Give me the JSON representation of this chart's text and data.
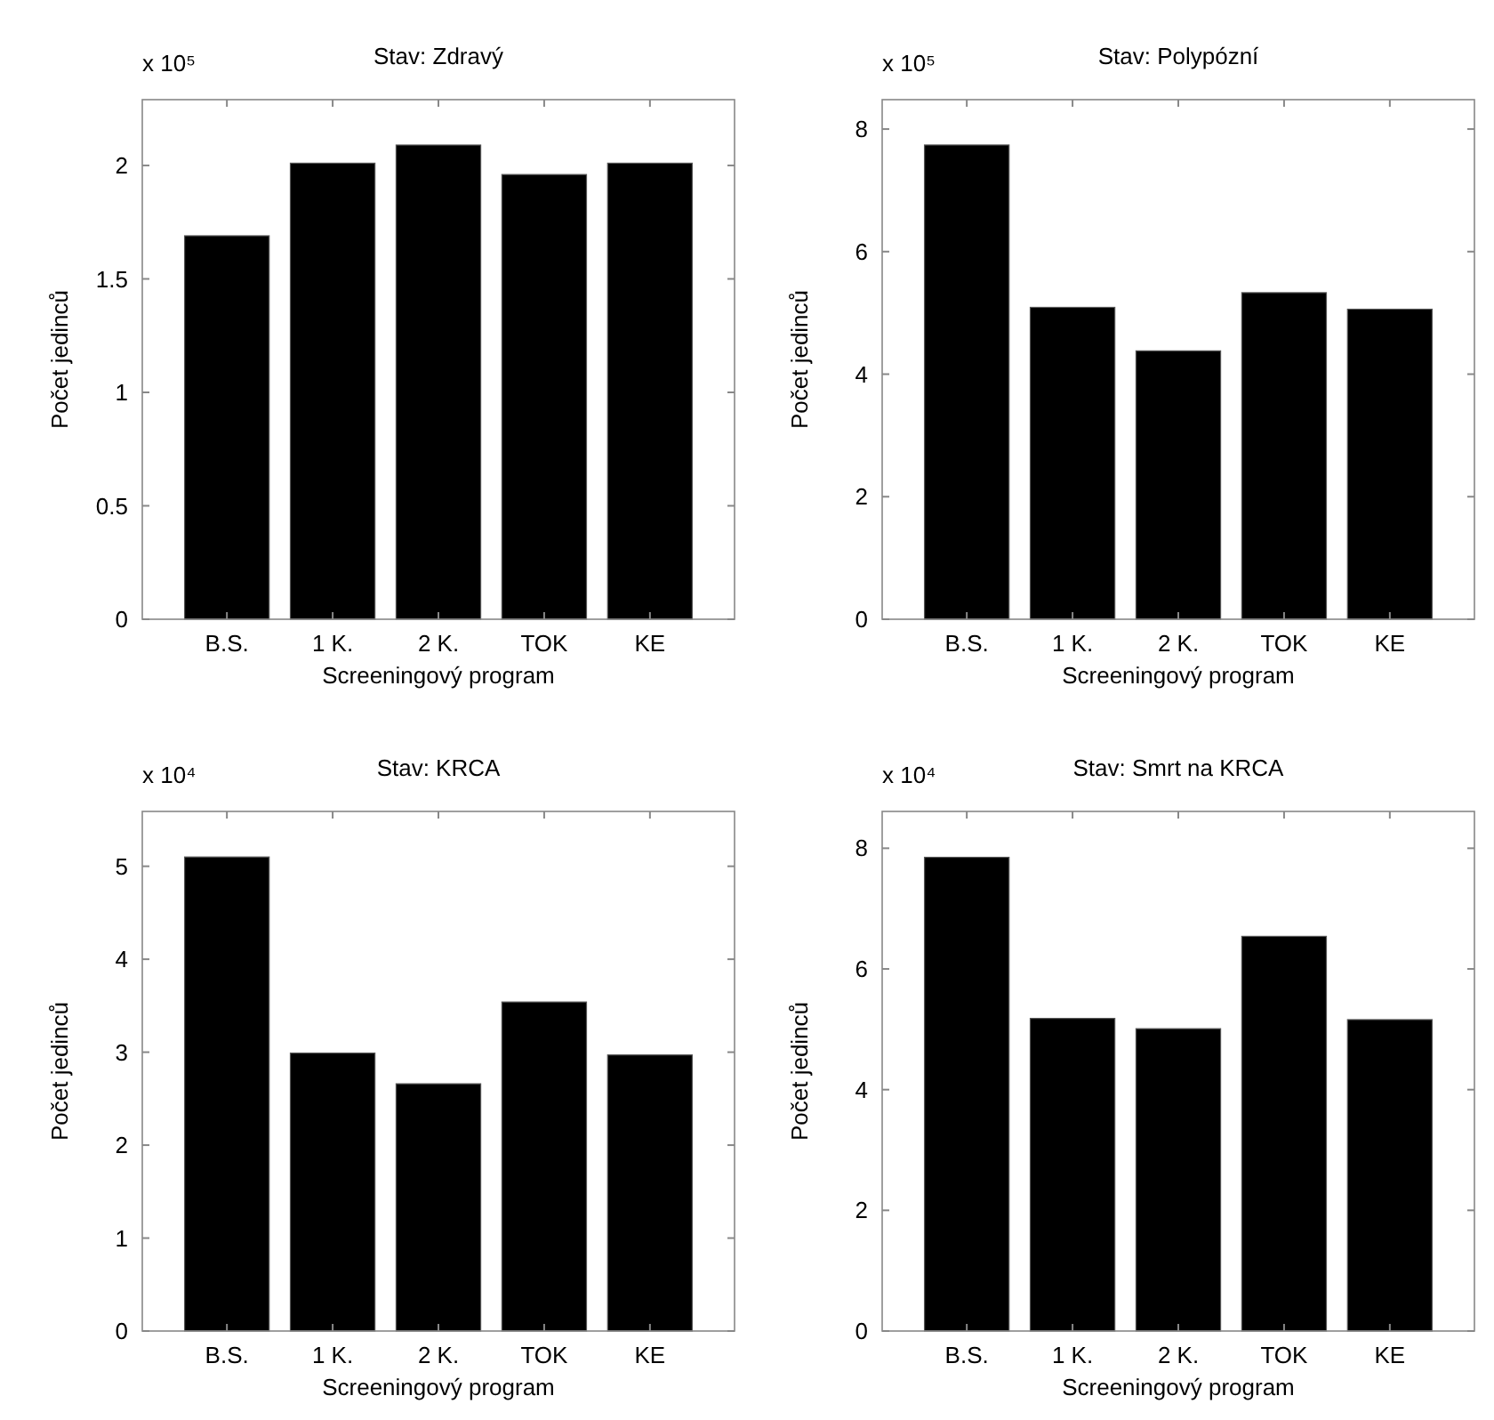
{
  "chart_data": [
    {
      "type": "bar",
      "title": "Stav: Zdravý",
      "xlabel": "Screeningový program",
      "ylabel": "Počet jedinců",
      "annotations": [
        "x 10⁵"
      ],
      "categories": [
        "B.S.",
        "1 K.",
        "2 K.",
        "TOK",
        "KE"
      ],
      "values": [
        1.69,
        2.01,
        2.09,
        1.96,
        2.01
      ],
      "color": "#000000",
      "ylim": [
        0,
        2.29
      ],
      "yticks": [
        0,
        0.5,
        1,
        1.5,
        2
      ],
      "grid": false
    },
    {
      "type": "bar",
      "title": "Stav: Polypózní",
      "xlabel": "Screeningový program",
      "ylabel": "Počet jedinců",
      "annotations": [
        "x 10⁵"
      ],
      "categories": [
        "B.S.",
        "1 K.",
        "2 K.",
        "TOK",
        "KE"
      ],
      "values": [
        7.74,
        5.09,
        4.38,
        5.33,
        5.06
      ],
      "color": "#000000",
      "ylim": [
        0,
        8.48
      ],
      "yticks": [
        0,
        2,
        4,
        6,
        8
      ],
      "grid": false
    },
    {
      "type": "bar",
      "title": "Stav: KRCA",
      "xlabel": "Screeningový program",
      "ylabel": "Počet jedinců",
      "annotations": [
        "x 10⁴"
      ],
      "categories": [
        "B.S.",
        "1 K.",
        "2 K.",
        "TOK",
        "KE"
      ],
      "values": [
        5.1,
        2.99,
        2.66,
        3.54,
        2.97
      ],
      "color": "#000000",
      "ylim": [
        0,
        5.59
      ],
      "yticks": [
        0,
        1,
        2,
        3,
        4,
        5
      ],
      "grid": false
    },
    {
      "type": "bar",
      "title": "Stav: Smrt na KRCA",
      "xlabel": "Screeningový program",
      "ylabel": "Počet jedinců",
      "annotations": [
        "x 10⁴"
      ],
      "categories": [
        "B.S.",
        "1 K.",
        "2 K.",
        "TOK",
        "KE"
      ],
      "values": [
        7.85,
        5.18,
        5.01,
        6.54,
        5.16
      ],
      "color": "#000000",
      "ylim": [
        0,
        8.61
      ],
      "yticks": [
        0,
        2,
        4,
        6,
        8
      ],
      "grid": false
    }
  ]
}
